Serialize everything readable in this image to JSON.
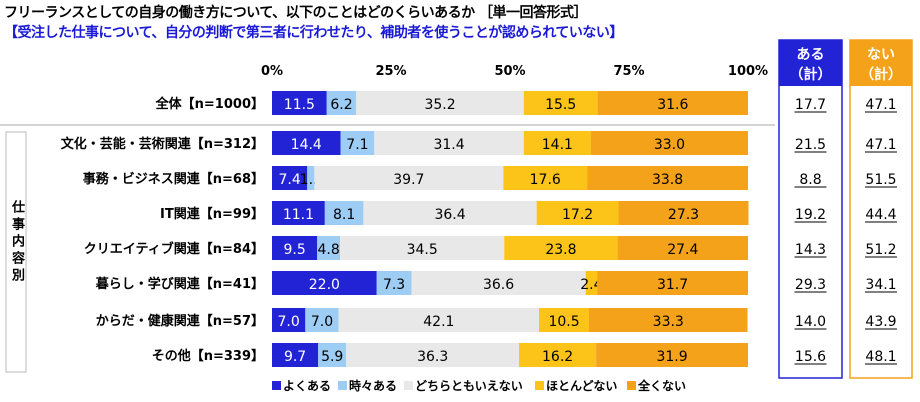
{
  "title": "フリーランスとしての自身の働き方について、以下のことはどのくらいあるか ［単一回答形式］",
  "subtitle": "【受注した仕事について、自分の判断で第三者に行わせたり、補助者を使うことが認められていない】",
  "group_label": "仕事内容別",
  "summary_headers": {
    "aru": "ある\n（計）",
    "nai": "ない\n（計）"
  },
  "chart_data": {
    "type": "bar",
    "stacked": true,
    "orientation": "horizontal",
    "xlim": [
      0,
      100
    ],
    "ticks": [
      "0%",
      "25%",
      "50%",
      "75%",
      "100%"
    ],
    "categories": [
      "全体【n=1000】",
      "文化・芸能・芸術関連【n=312】",
      "事務・ビジネス関連【n=68】",
      "IT関連【n=99】",
      "クリエイティブ関連【n=84】",
      "暮らし・学び関連【n=41】",
      "からだ・健康関連【n=57】",
      "その他【n=339】"
    ],
    "series": [
      {
        "name": "よくある",
        "color": "#2323d6",
        "values": [
          11.5,
          14.4,
          7.4,
          11.1,
          9.5,
          22.0,
          7.0,
          9.7
        ]
      },
      {
        "name": "時々ある",
        "color": "#9dccf5",
        "values": [
          6.2,
          7.1,
          1.5,
          8.1,
          4.8,
          7.3,
          7.0,
          5.9
        ]
      },
      {
        "name": "どちらともいえない",
        "color": "#e8e8e8",
        "values": [
          35.2,
          31.4,
          39.7,
          36.4,
          34.5,
          36.6,
          42.1,
          36.3
        ]
      },
      {
        "name": "ほとんどない",
        "color": "#fcc419",
        "values": [
          15.5,
          14.1,
          17.6,
          17.2,
          23.8,
          2.4,
          10.5,
          16.2
        ]
      },
      {
        "name": "全くない",
        "color": "#f5a21b",
        "values": [
          31.6,
          33.0,
          33.8,
          27.3,
          27.4,
          31.7,
          33.3,
          31.9
        ]
      }
    ],
    "aru_total": [
      "17.7",
      "21.5",
      "8.8",
      "19.2",
      "14.3",
      "29.3",
      "14.0",
      "15.6"
    ],
    "nai_total": [
      "47.1",
      "47.1",
      "51.5",
      "44.4",
      "51.2",
      "34.1",
      "43.9",
      "48.1"
    ],
    "legend_position": "bottom"
  }
}
